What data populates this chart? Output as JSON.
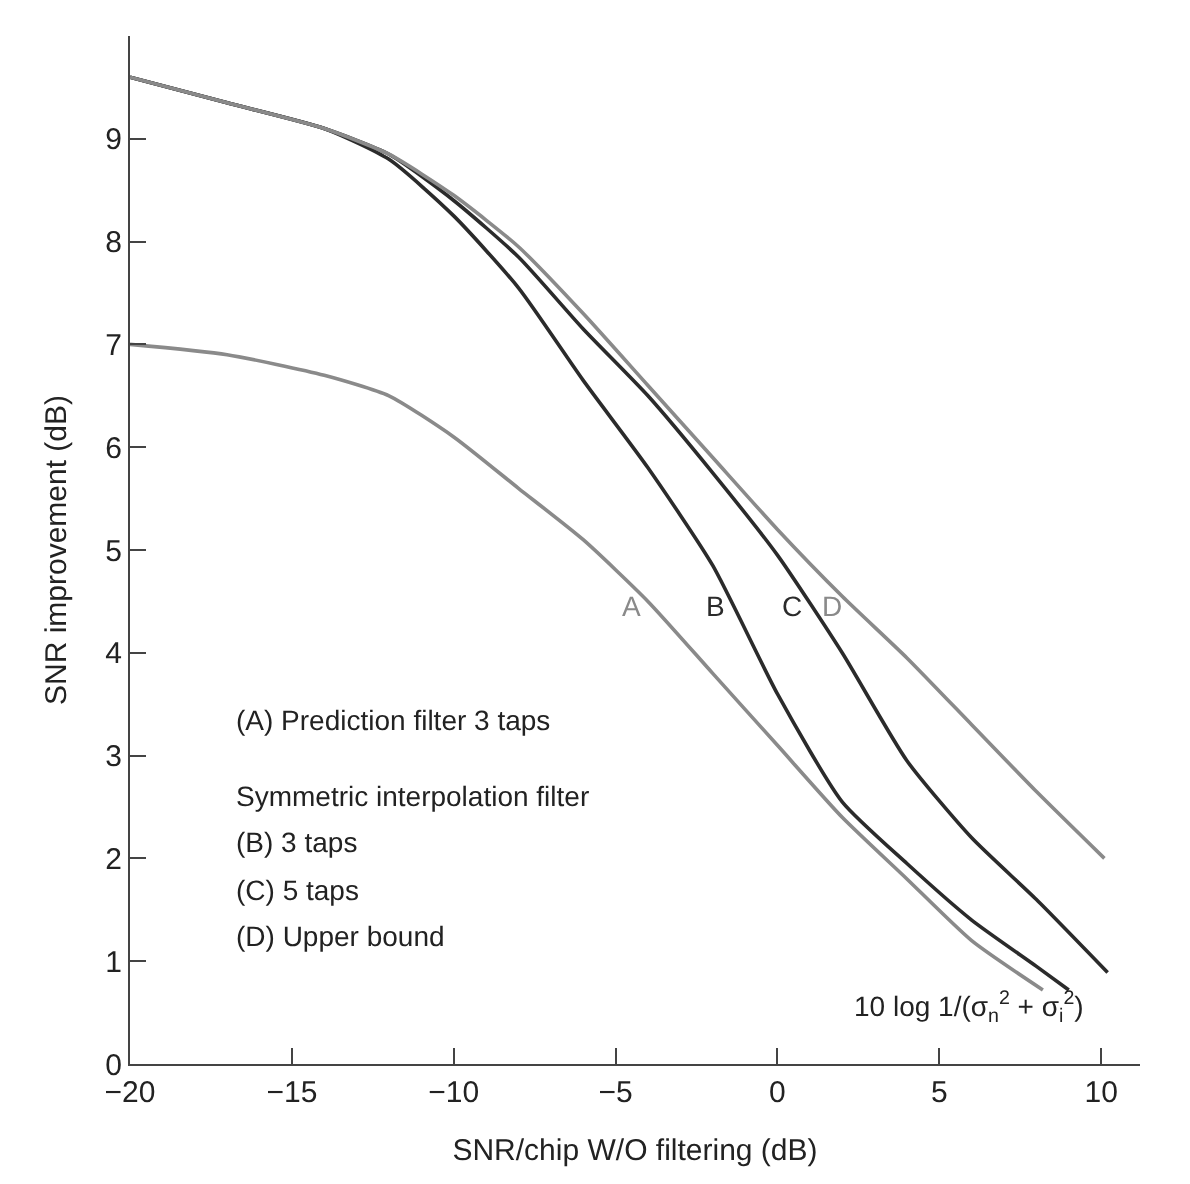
{
  "chart_data": {
    "type": "line",
    "xlabel": "SNR/chip W/O filtering (dB)",
    "ylabel": "SNR improvement (dB)",
    "xlim": [
      -20,
      11.2
    ],
    "ylim": [
      0,
      10
    ],
    "xticks": [
      -20,
      -15,
      -10,
      -5,
      0,
      5,
      10
    ],
    "yticks": [
      0,
      1,
      2,
      3,
      4,
      5,
      6,
      7,
      8,
      9
    ],
    "grid": false,
    "line_style": "solid",
    "marker": "none",
    "series": [
      {
        "name": "A",
        "color": "#8a8a8a",
        "x": [
          -20,
          -17,
          -14,
          -12,
          -10,
          -8,
          -6,
          -4,
          -2,
          0,
          2,
          4,
          6,
          8.2
        ],
        "values": [
          7.0,
          6.9,
          6.7,
          6.5,
          6.1,
          5.6,
          5.1,
          4.5,
          3.8,
          3.1,
          2.4,
          1.8,
          1.2,
          0.72
        ]
      },
      {
        "name": "B",
        "color": "#2b2b2b",
        "x": [
          -20,
          -17,
          -14,
          -12,
          -10,
          -8,
          -6,
          -4,
          -2,
          0,
          2,
          4,
          6,
          8,
          9
        ],
        "values": [
          9.6,
          9.35,
          9.1,
          8.8,
          8.25,
          7.55,
          6.65,
          5.8,
          4.85,
          3.6,
          2.55,
          1.95,
          1.4,
          0.95,
          0.72
        ]
      },
      {
        "name": "C",
        "color": "#2b2b2b",
        "x": [
          -20,
          -17,
          -14,
          -12,
          -10,
          -8,
          -6,
          -4,
          -2,
          0,
          2,
          4,
          6,
          8,
          10.2
        ],
        "values": [
          9.6,
          9.35,
          9.1,
          8.85,
          8.4,
          7.85,
          7.15,
          6.5,
          5.75,
          4.95,
          4.0,
          2.95,
          2.2,
          1.6,
          0.89
        ]
      },
      {
        "name": "D",
        "color": "#8a8a8a",
        "x": [
          -20,
          -17,
          -14,
          -12,
          -10,
          -8,
          -6,
          -4,
          -2,
          0,
          2,
          4,
          6,
          8,
          10.1
        ],
        "values": [
          9.6,
          9.35,
          9.1,
          8.85,
          8.45,
          7.95,
          7.3,
          6.6,
          5.9,
          5.2,
          4.55,
          3.95,
          3.3,
          2.65,
          2.0
        ]
      }
    ],
    "annotations": [
      "(A) Prediction filter 3 taps",
      "Symmetric interpolation filter",
      "(B) 3 taps",
      "(C) 5 taps",
      "(D) Upper bound",
      "10 log 1/(σ$_{n}$$^{2}$ + σ$_{i}$$^{2}$)"
    ]
  }
}
